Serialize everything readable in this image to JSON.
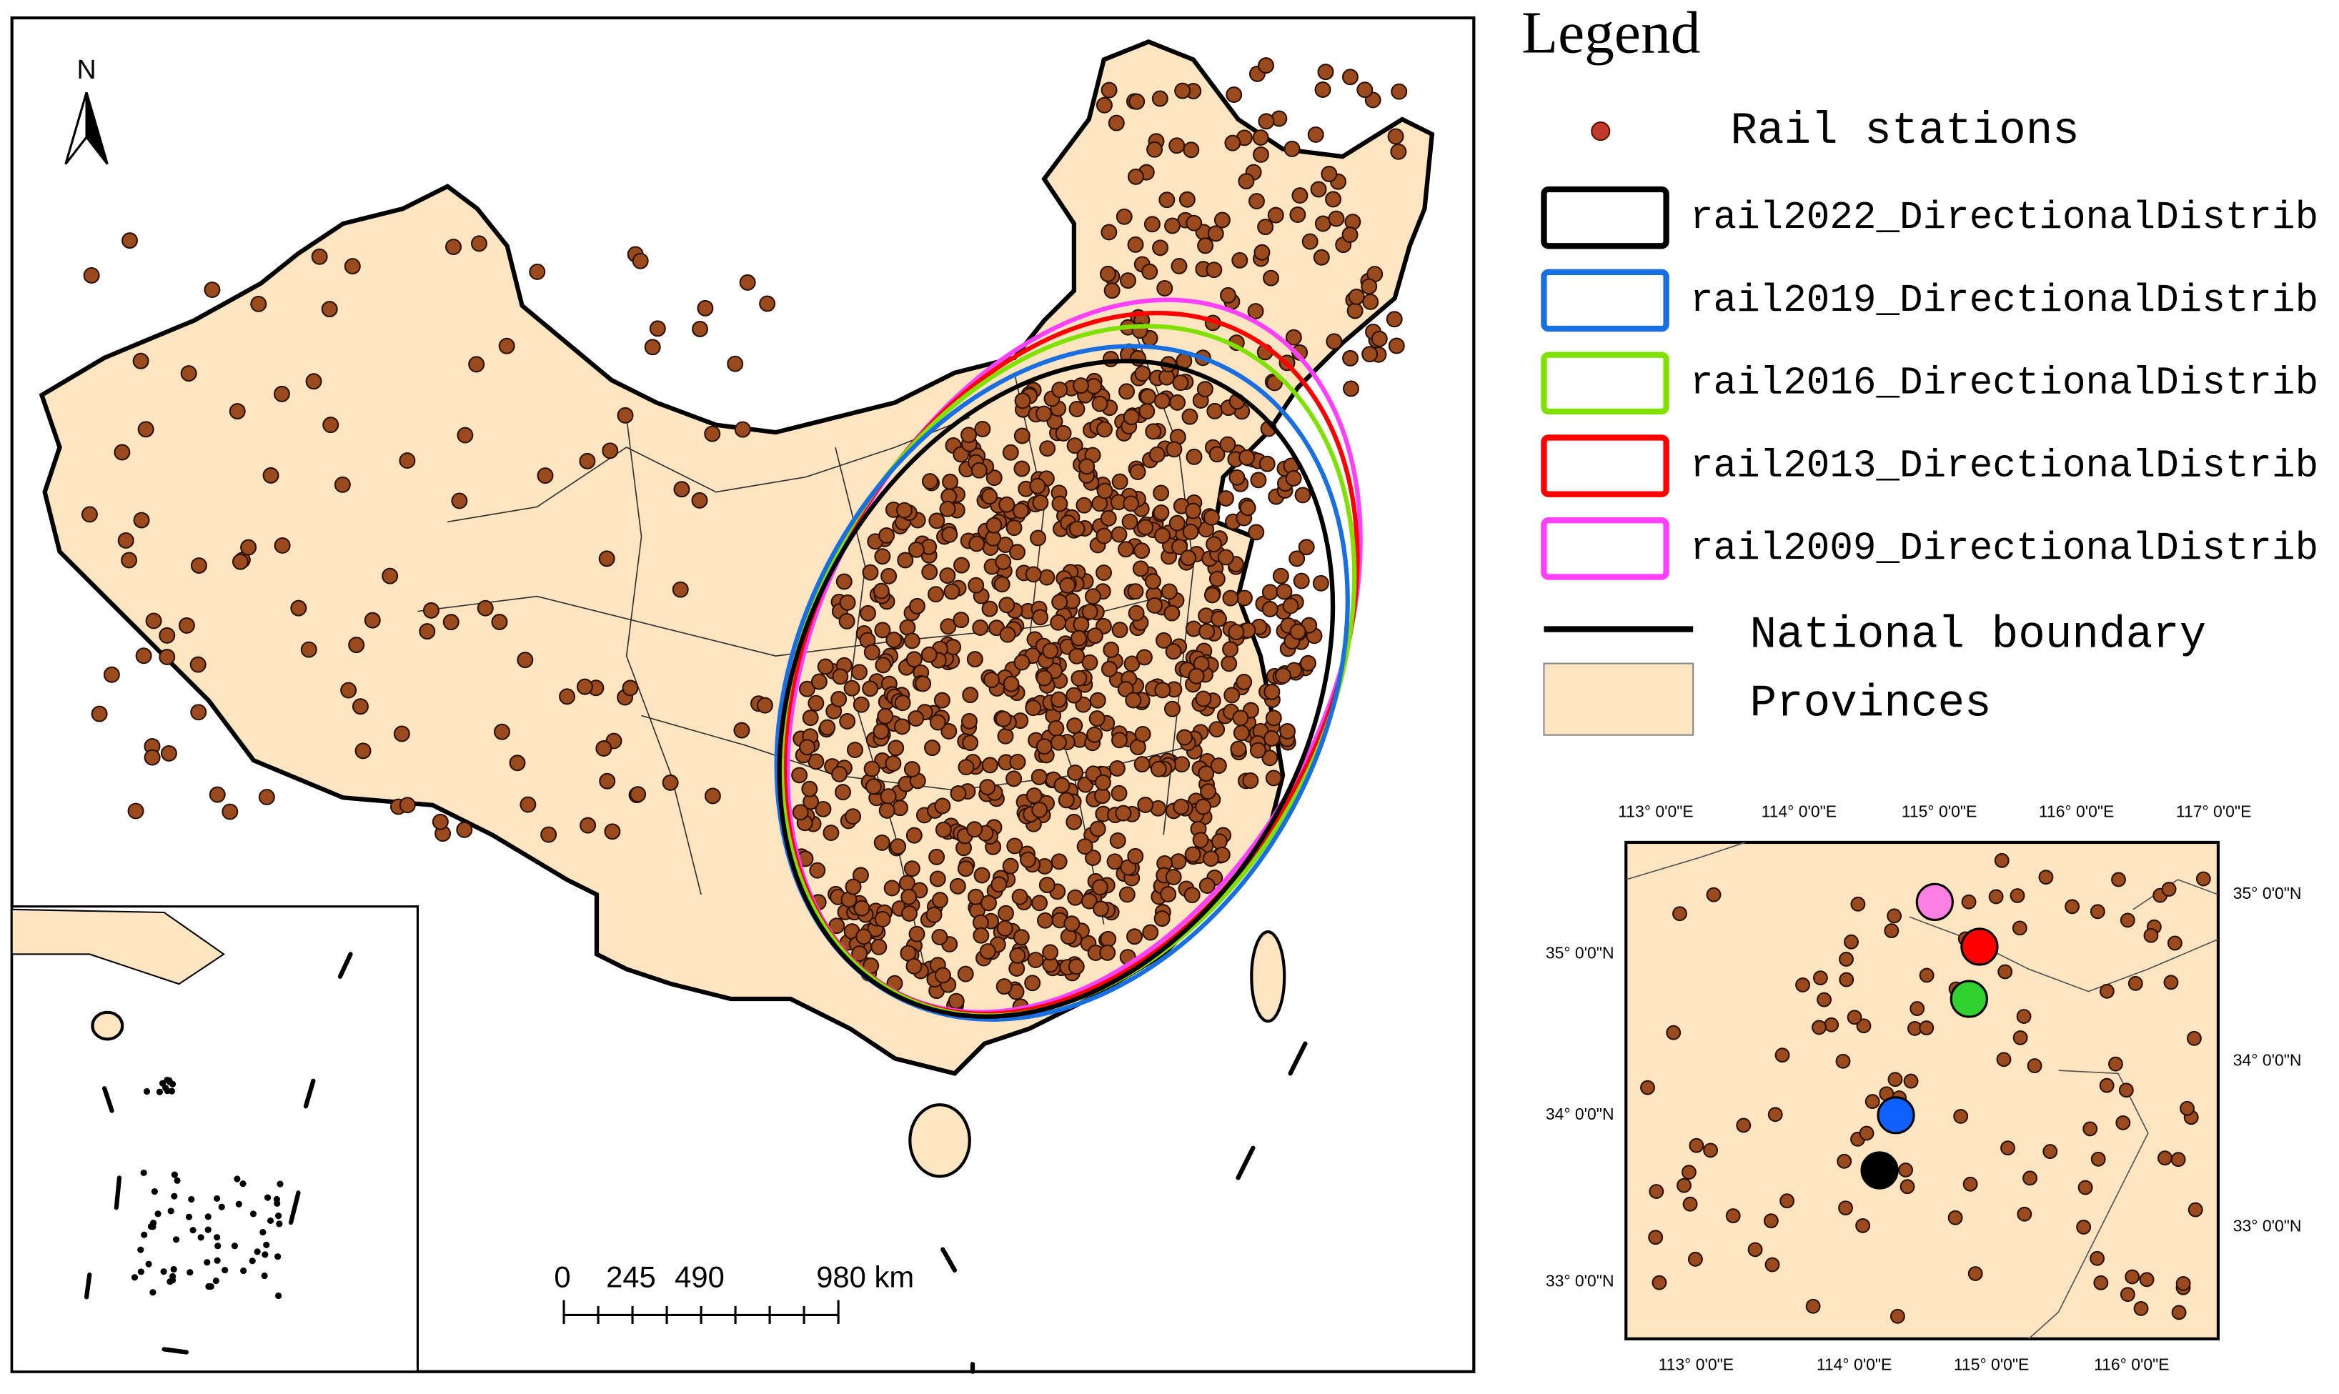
{
  "north_arrow": "N",
  "legend": {
    "title": "Legend",
    "items": [
      "Rail stations",
      "rail2022_DirectionalDistrib",
      "rail2019_DirectionalDistrib",
      "rail2016_DirectionalDistrib",
      "rail2013_DirectionalDistrib",
      "rail2009_DirectionalDistrib",
      "National boundary",
      "Provinces"
    ]
  },
  "scale_bar": {
    "labels": [
      "0",
      "245",
      "490",
      "980 km"
    ]
  },
  "inset_map": {
    "top_labels": [
      "113° 0'0\"E",
      "114° 0'0\"E",
      "115° 0'0\"E",
      "116° 0'0\"E",
      "117° 0'0\"E"
    ],
    "bottom_labels": [
      "113° 0'0\"E",
      "114° 0'0\"E",
      "115° 0'0\"E",
      "116° 0'0\"E"
    ],
    "left_labels": [
      "35° 0'0\"N",
      "34° 0'0\"N",
      "33° 0'0\"N"
    ],
    "right_labels": [
      "35° 0'0\"N",
      "34° 0'0\"N",
      "33° 0'0\"N"
    ]
  }
}
